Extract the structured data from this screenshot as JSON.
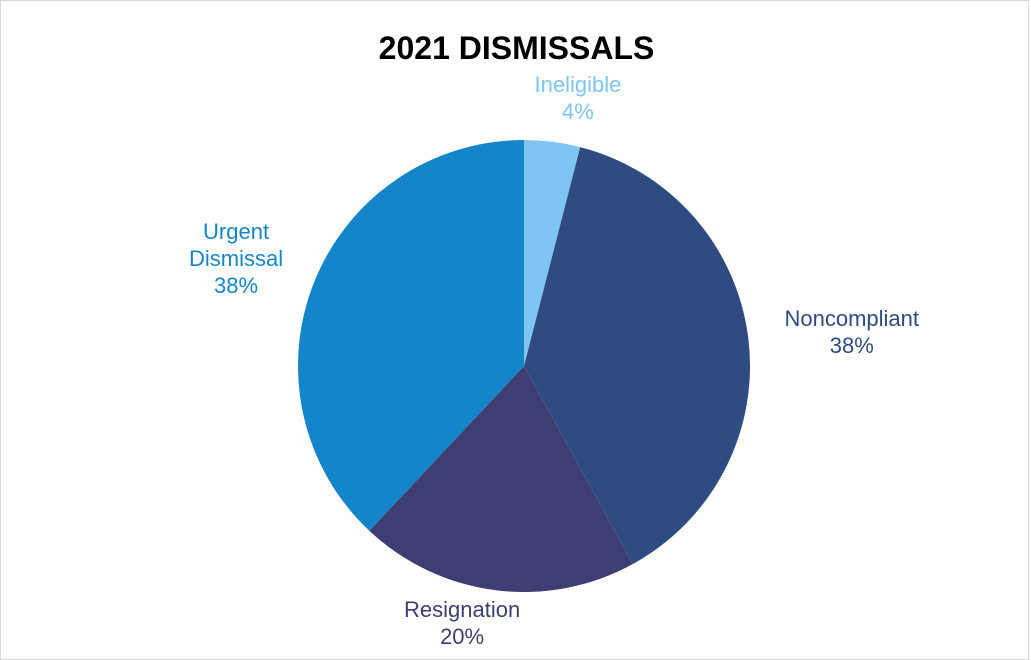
{
  "chart_data": {
    "type": "pie",
    "title": "2021 DISMISSALS",
    "slices": [
      {
        "name": "Ineligible",
        "value": 4,
        "label_lines": [
          "Ineligible"
        ],
        "percent_label": "4%",
        "color": "#7fc5f3",
        "label_color": "#7fc5f3"
      },
      {
        "name": "Noncompliant",
        "value": 38,
        "label_lines": [
          "Noncompliant"
        ],
        "percent_label": "38%",
        "color": "#2e4c82",
        "label_color": "#2e4c82"
      },
      {
        "name": "Resignation",
        "value": 20,
        "label_lines": [
          "Resignation"
        ],
        "percent_label": "20%",
        "color": "#3f3e72",
        "label_color": "#3f3e72"
      },
      {
        "name": "Urgent Dismissal",
        "value": 38,
        "label_lines": [
          "Urgent",
          "Dismissal"
        ],
        "percent_label": "38%",
        "color": "#1585ca",
        "label_color": "#1585ca"
      }
    ],
    "start_angle": "12 o'clock",
    "direction": "clockwise",
    "legend": "none"
  }
}
